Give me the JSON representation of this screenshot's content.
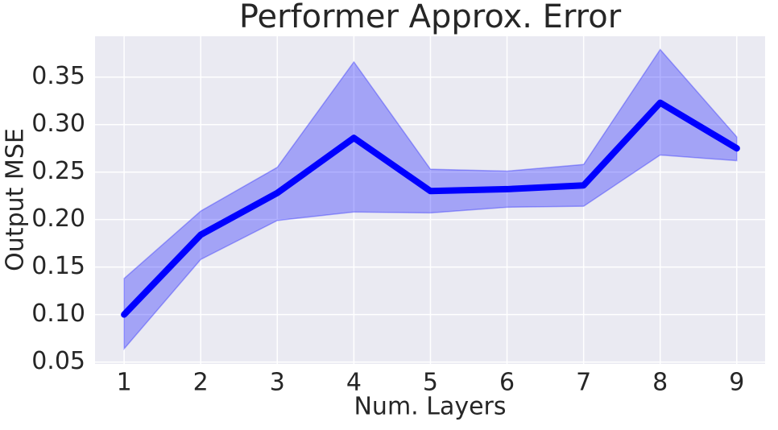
{
  "chart_data": {
    "type": "line",
    "title": "Performer Approx. Error",
    "x_label": "Num. Layers",
    "y_label": "Output MSE",
    "x": [
      1,
      2,
      3,
      4,
      5,
      6,
      7,
      8,
      9
    ],
    "values": [
      0.1,
      0.184,
      0.228,
      0.286,
      0.23,
      0.232,
      0.236,
      0.323,
      0.275
    ],
    "upper": [
      0.138,
      0.209,
      0.255,
      0.366,
      0.253,
      0.251,
      0.258,
      0.379,
      0.287
    ],
    "lower": [
      0.064,
      0.158,
      0.199,
      0.208,
      0.207,
      0.213,
      0.214,
      0.268,
      0.262
    ],
    "color": "#0000ff",
    "band_color": "#0000ff",
    "xlim": [
      0.62,
      9.37
    ],
    "ylim": [
      0.048,
      0.393
    ],
    "xticks": [
      1,
      2,
      3,
      4,
      5,
      6,
      7,
      8,
      9
    ],
    "yticks": [
      0.05,
      {
        "value": 0.1,
        "label": "0.10"
      },
      0.15,
      {
        "value": 0.2,
        "label": "0.20"
      },
      0.25,
      {
        "value": 0.3,
        "label": "0.30"
      },
      0.35
    ],
    "grid": true
  }
}
